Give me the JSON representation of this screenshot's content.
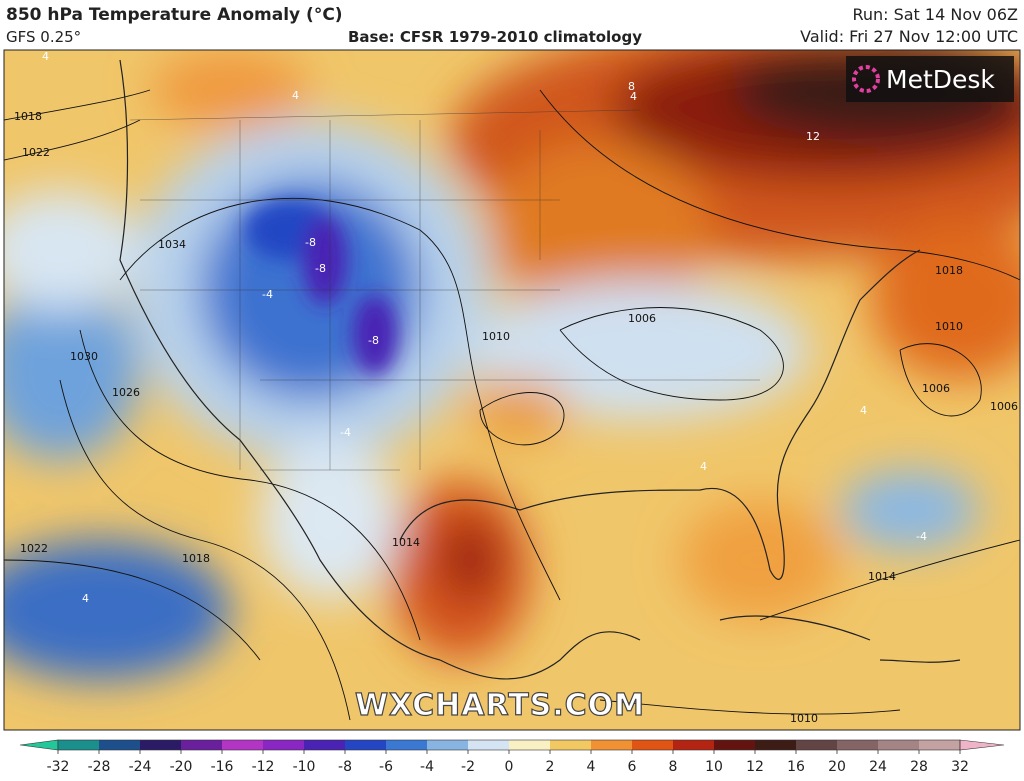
{
  "header": {
    "title": "850 hPa Temperature Anomaly (°C)",
    "model": "GFS 0.25°",
    "base": "Base: CFSR 1979-2010 climatology",
    "run": "Run: Sat 14 Nov 06Z",
    "valid": "Valid: Fri 27 Nov 12:00 UTC"
  },
  "logo": "MetDesk",
  "watermark": "WXCHARTS.COM",
  "map": {
    "isobar_labels": [
      "1018",
      "1022",
      "1034",
      "1030",
      "1026",
      "1022",
      "1018",
      "1014",
      "1010",
      "1006",
      "1006",
      "1006",
      "1010",
      "1014",
      "1018",
      "1010"
    ],
    "anomaly_labels": [
      "4",
      "-8",
      "-8",
      "-8",
      "-4",
      "-4",
      "4",
      "8",
      "12",
      "4",
      "4",
      "-4",
      "4",
      "4"
    ]
  },
  "colorbar": {
    "ticks": [
      -32,
      -28,
      -24,
      -20,
      -16,
      -12,
      -10,
      -8,
      -6,
      -4,
      -2,
      0,
      2,
      4,
      6,
      8,
      10,
      12,
      16,
      20,
      24,
      28,
      32
    ],
    "colors": [
      "#22c79a",
      "#1a8f8c",
      "#1d4f8c",
      "#2b1a66",
      "#6a1f9c",
      "#b235c4",
      "#8a26c4",
      "#4a22b4",
      "#2446c4",
      "#3a78d2",
      "#88b4e2",
      "#d4e4f2",
      "#f9f1c4",
      "#f2c862",
      "#f09234",
      "#e05414",
      "#b42412",
      "#641410",
      "#3c1c14",
      "#634444",
      "#846464",
      "#a48484",
      "#c4a2a2",
      "#f0b4c8"
    ]
  }
}
